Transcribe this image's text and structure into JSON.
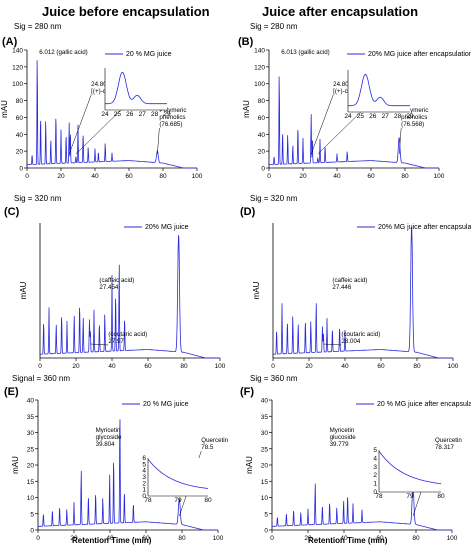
{
  "headers": {
    "left": "Juice before encapsulation",
    "right": "Juice after encapsulation"
  },
  "x_axis_title": "Retention Time (min)",
  "chart_data": [
    {
      "type": "line",
      "panel": "(A)",
      "signal": "Sig = 280 nm",
      "ylabel": "mAU",
      "xlim": [
        0,
        100
      ],
      "ylim": [
        0,
        140
      ],
      "xticks": [
        0,
        20,
        40,
        60,
        80,
        100
      ],
      "yticks": [
        0,
        20,
        40,
        60,
        80,
        100,
        120,
        140
      ],
      "legend": "20 % MG juice",
      "legend_position": "top-right",
      "color": "#2b2bdd",
      "peaks": [
        [
          6.012,
          130
        ],
        [
          3,
          12
        ],
        [
          8,
          58
        ],
        [
          11,
          52
        ],
        [
          14,
          28
        ],
        [
          17,
          60
        ],
        [
          20,
          40
        ],
        [
          23,
          35
        ],
        [
          24.809,
          48
        ],
        [
          25.5,
          38
        ],
        [
          28.767,
          8
        ],
        [
          30,
          45
        ],
        [
          33,
          36
        ],
        [
          36,
          18
        ],
        [
          40,
          16
        ],
        [
          42,
          12
        ],
        [
          46,
          22
        ],
        [
          50,
          10
        ],
        [
          76.685,
          14
        ]
      ],
      "annotations": [
        {
          "x": 6.012,
          "text": "6.012 (gallic acid)"
        },
        {
          "x": 24.809,
          "text": "24.809",
          "text2": "[(+)-catechin]"
        },
        {
          "x": 28.767,
          "text": "28.767",
          "text2": "[(-)-epicatechin]"
        },
        {
          "x": 76.685,
          "text": "Polymeric",
          "text2": "phenolics",
          "text3": "(76.685)"
        }
      ],
      "inset": {
        "xlim": [
          24,
          29
        ],
        "xticks": [
          24,
          25,
          26,
          27,
          28,
          29
        ]
      }
    },
    {
      "type": "line",
      "panel": "(B)",
      "signal": "Sig = 280 nm",
      "ylabel": "mAU",
      "xlim": [
        0,
        100
      ],
      "ylim": [
        0,
        140
      ],
      "xticks": [
        0,
        20,
        40,
        60,
        80,
        100
      ],
      "yticks": [
        0,
        20,
        40,
        60,
        80,
        100,
        120,
        140
      ],
      "legend": "20% MG juice after encapsulation",
      "legend_position": "top-right",
      "color": "#2b2bdd",
      "peaks": [
        [
          6.013,
          110
        ],
        [
          3,
          10
        ],
        [
          8,
          40
        ],
        [
          11,
          35
        ],
        [
          14,
          22
        ],
        [
          17,
          45
        ],
        [
          20,
          30
        ],
        [
          24.802,
          58
        ],
        [
          25.5,
          30
        ],
        [
          28.737,
          6
        ],
        [
          30,
          28
        ],
        [
          33,
          20
        ],
        [
          40,
          10
        ],
        [
          46,
          12
        ],
        [
          76.568,
          30
        ]
      ],
      "annotations": [
        {
          "x": 6.013,
          "text": "6.013 (gallic acid)"
        },
        {
          "x": 24.802,
          "text": "24.802",
          "text2": "[(+)-catechin]"
        },
        {
          "x": 28.737,
          "text": "28.737",
          "text2": "[(-)-epicatechin]"
        },
        {
          "x": 76.568,
          "text": "Polymeric",
          "text2": "phenolics",
          "text3": "(76.568)"
        }
      ],
      "inset": {
        "xlim": [
          24,
          29
        ],
        "xticks": [
          24,
          25,
          26,
          27,
          28,
          29
        ]
      }
    },
    {
      "type": "line",
      "panel": "(C)",
      "signal": "Sig = 320 nm",
      "ylabel": "mAU",
      "xlim": [
        0,
        100
      ],
      "xticks": [
        0,
        20,
        40,
        60,
        80,
        100
      ],
      "legend": "20% MG juice",
      "legend_position": "top-right",
      "color": "#2b2bdd",
      "peaks": [
        [
          2,
          40
        ],
        [
          5,
          55
        ],
        [
          9,
          35
        ],
        [
          12,
          48
        ],
        [
          15,
          38
        ],
        [
          19,
          45
        ],
        [
          22,
          60
        ],
        [
          24,
          42
        ],
        [
          27.454,
          40
        ],
        [
          27.97,
          28
        ],
        [
          30,
          50
        ],
        [
          33,
          35
        ],
        [
          36,
          45
        ],
        [
          40,
          90
        ],
        [
          42,
          70
        ],
        [
          44,
          105
        ],
        [
          47,
          40
        ],
        [
          77,
          140
        ]
      ],
      "annotations": [
        {
          "x": 27.454,
          "text": "(caffeic acid)",
          "text2": "27.454"
        },
        {
          "x": 27.97,
          "text": "(coutaric acid)",
          "text2": "27.97"
        }
      ]
    },
    {
      "type": "line",
      "panel": "(D)",
      "signal": "Sig = 320 nm",
      "ylabel": "mAU",
      "xlim": [
        0,
        100
      ],
      "xticks": [
        0,
        20,
        40,
        60,
        80,
        100
      ],
      "legend": "20% MG juice after encapsulation",
      "legend_position": "top-right",
      "color": "#2b2bdd",
      "peaks": [
        [
          2,
          30
        ],
        [
          5,
          60
        ],
        [
          8,
          40
        ],
        [
          11,
          45
        ],
        [
          14,
          35
        ],
        [
          18,
          40
        ],
        [
          21,
          38
        ],
        [
          24,
          60
        ],
        [
          27.446,
          32
        ],
        [
          28.004,
          24
        ],
        [
          30,
          40
        ],
        [
          33,
          28
        ],
        [
          37,
          30
        ],
        [
          40,
          25
        ],
        [
          77,
          150
        ]
      ],
      "annotations": [
        {
          "x": 27.446,
          "text": "(caffeic acid)",
          "text2": "27.446"
        },
        {
          "x": 28.004,
          "text": "(coutaric acid)",
          "text2": "28.004"
        }
      ]
    },
    {
      "type": "line",
      "panel": "(E)",
      "signal": "Signal = 360 nm",
      "ylabel": "mAU",
      "xlim": [
        0,
        100
      ],
      "ylim": [
        0,
        40
      ],
      "xticks": [
        0,
        20,
        40,
        60,
        80,
        100
      ],
      "yticks": [
        0,
        5,
        10,
        15,
        20,
        25,
        30,
        35,
        40
      ],
      "legend": "20 % MG juice",
      "legend_position": "top-right",
      "color": "#2b2bdd",
      "peaks": [
        [
          3,
          4
        ],
        [
          8,
          5
        ],
        [
          12,
          6
        ],
        [
          16,
          5
        ],
        [
          20,
          7
        ],
        [
          24,
          17
        ],
        [
          28,
          9
        ],
        [
          32,
          10
        ],
        [
          36,
          8
        ],
        [
          39.804,
          15
        ],
        [
          42,
          21
        ],
        [
          45.5,
          36
        ],
        [
          48,
          10
        ],
        [
          53,
          6
        ],
        [
          78.5,
          8
        ]
      ],
      "annotations": [
        {
          "x": 39.804,
          "text": "Myricetin",
          "text2": "glycoside",
          "text3": "39.804"
        },
        {
          "x": 78.5,
          "text": "Quercetin",
          "text2": "78.5"
        }
      ],
      "inset": {
        "xlim": [
          78,
          80
        ],
        "xticks": [
          78,
          79,
          80
        ],
        "ylim": [
          0,
          6
        ],
        "yticks": [
          0,
          1,
          2,
          3,
          4,
          5,
          6
        ]
      }
    },
    {
      "type": "line",
      "panel": "(F)",
      "signal": "Sig = 360 nm",
      "ylabel": "mAU",
      "xlim": [
        0,
        100
      ],
      "ylim": [
        0,
        40
      ],
      "xticks": [
        0,
        20,
        40,
        60,
        80,
        100
      ],
      "yticks": [
        0,
        5,
        10,
        15,
        20,
        25,
        30,
        35,
        40
      ],
      "legend": "20 % MG juice after encapsulation",
      "legend_position": "top-right",
      "color": "#2b2bdd",
      "peaks": [
        [
          3,
          3
        ],
        [
          8,
          4
        ],
        [
          12,
          5
        ],
        [
          16,
          4
        ],
        [
          20,
          5
        ],
        [
          24,
          13
        ],
        [
          28,
          6
        ],
        [
          32,
          7
        ],
        [
          36,
          5
        ],
        [
          39.779,
          7
        ],
        [
          42,
          9
        ],
        [
          45,
          6
        ],
        [
          50,
          4
        ],
        [
          78.317,
          12
        ]
      ],
      "annotations": [
        {
          "x": 39.779,
          "text": "Myricetin",
          "text2": "glucoside",
          "text3": "39.779"
        },
        {
          "x": 78.317,
          "text": "Quercetin",
          "text2": "78.317"
        }
      ],
      "inset": {
        "xlim": [
          78,
          80
        ],
        "xticks": [
          78,
          79,
          80
        ],
        "ylim": [
          0,
          5
        ],
        "yticks": [
          0,
          1,
          2,
          3,
          4,
          5
        ]
      }
    }
  ]
}
